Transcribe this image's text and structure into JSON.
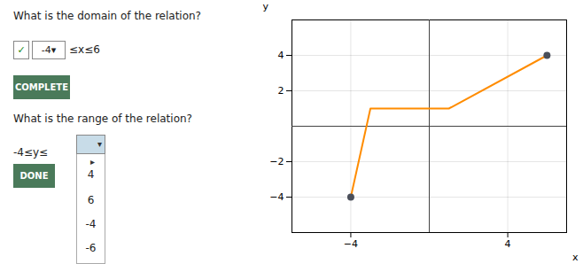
{
  "chart_data": {
    "type": "line",
    "x": [
      -4,
      -3,
      1,
      6
    ],
    "values": [
      -4,
      1,
      1,
      4
    ],
    "color": "#FF8C00",
    "dot_points": {
      "x": [
        -4,
        6
      ],
      "values": [
        -4,
        4
      ],
      "color": "#4a4f5a"
    },
    "xlim": [
      -7,
      7
    ],
    "ylim": [
      -6,
      6
    ],
    "xticks": [
      -4,
      4
    ],
    "yticks": [
      -4,
      -2,
      2,
      4
    ],
    "xlabel": "x",
    "ylabel": "y",
    "grid": true,
    "annotations": [
      "What is the domain of the relation?",
      "✓",
      "-4▾",
      "≤x≤6",
      "COMPLETE",
      "What is the range of the relation?",
      "-4≤y≤",
      "▾",
      "DONE",
      "▸",
      "4",
      "6",
      "-4",
      "-6"
    ]
  }
}
